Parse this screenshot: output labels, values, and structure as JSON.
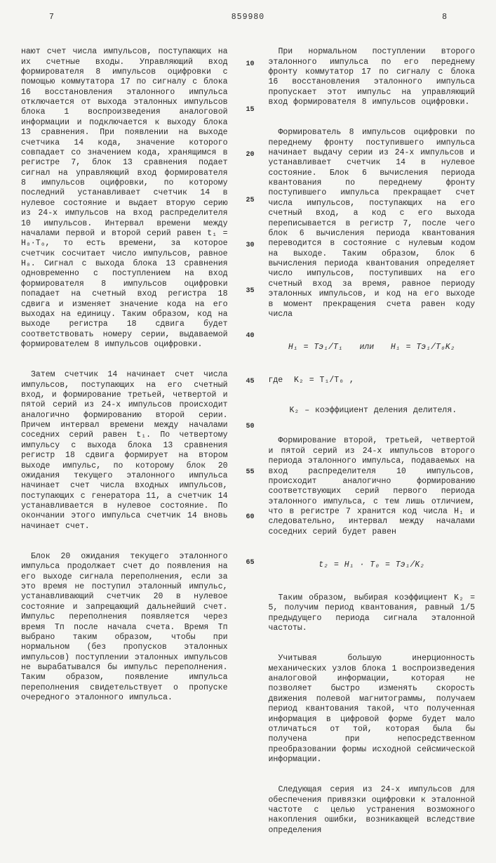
{
  "header": {
    "left_col_num": "7",
    "doc_num": "859980",
    "right_col_num": "8"
  },
  "line_numbers": [
    "10",
    "15",
    "20",
    "25",
    "30",
    "35",
    "40",
    "45",
    "50",
    "55",
    "60",
    "65"
  ],
  "line_number_offsets": [
    58,
    122,
    186,
    250,
    314,
    378,
    442,
    506,
    570,
    634,
    698,
    762
  ],
  "left_col": {
    "p1": "нают счет числа импульсов, поступающих на их счетные входы. Управляющий вход формирователя 8 импульсов оцифровки с помощью коммутатора 17 по сигналу с блока 16 восстановления эталонного импульса отключается от выхода эталонных импульсов блока 1 воспроизведения аналоговой информации и подключается к выходу блока 13 сравнения. При появлении на выходе счетчика 14 кода, значение которого совпадает со значением кода, хранящимся в регистре 7, блок 13 сравнения подает сигнал на управляющий вход формирователя 8 импульсов оцифровки, по которому последний устанавливает счетчик 14 в нулевое состояние и выдает вторую серию из 24-х импульсов на вход распределителя 10 импульсов. Интервал времени между началами первой и второй серий равен t₁ = H₀·T₀, то есть времени, за которое счетчик сосчитает число импульсов, равное H₀. Сигнал с выхода блока 13 сравнения одновременно с поступлением на вход формирователя 8 импульсов оцифровки попадает на счетный вход регистра 18 сдвига и изменяет значение кода на его выходах на единицу. Таким образом, код на выходе регистра 18 сдвига будет соответствовать номеру серии, выдаваемой формирователем 8 импульсов оцифровки.",
    "p2": "Затем счетчик 14 начинает счет числа импульсов, поступающих на его счетный вход, и формирование третьей, четвертой и пятой серий из 24-х импульсов происходит аналогично формированию второй серии. Причем интервал времени между началами соседних серий равен t₁. По четвертому импульсу с выхода блока 13 сравнения регистр 18 сдвига формирует на втором выходе импульс, по которому блок 20 ожидания текущего эталонного импульса начинает счет числа входных импульсов, поступающих с генератора 11, а счетчик 14 устанавливается в нулевое состояние. По окончании этого импульса счетчик 14 вновь начинает счет.",
    "p3": "Блок 20 ожидания текущего эталонного импульса продолжает счет до появления на его выходе сигнала переполнения, если за это время не поступил эталонный импульс, устанавливающий счетчик 20 в нулевое состояние и запрещающий дальнейший счет. Импульс переполнения появляется через время Tп после начала счета. Время Tп выбрано таким образом, чтобы при нормальном (без пропусков эталонных импульсов) поступлении эталонных импульсов не вырабатывался бы импульс переполнения. Таким образом, появление импульса переполнения свидетельствует о пропуске очередного эталонного импульса."
  },
  "right_col": {
    "p1": "При нормальном поступлении второго эталонного импульса по его переднему фронту коммутатор 17 по сигналу с блока 16 восстановления эталонного импульса пропускает этот импульс на управляющий вход формирователя 8 импульсов оцифровки.",
    "p2": "Формирователь 8 импульсов оцифровки по переднему фронту поступившего импульса начинает выдачу серии из 24-х импульсов и устанавливает счетчик 14 в нулевое состояние. Блок 6 вычисления периода квантования по переднему фронту поступившего импульса прекращает счет числа импульсов, поступающих на его счетный вход, а код с его выхода переписывается в регистр 7, после чего блок 6 вычисления периода квантования переводится в состояние с нулевым кодом на выходе. Таким образом, блок 6 вычисления периода квантования определяет число импульсов, поступивших на его счетный вход за время, равное периоду эталонных импульсов, и код на его выходе в момент прекращения счета равен коду числа",
    "f1": "H₁ = Tэ₁/T₁   или   H₁ = Tэ₁/T₀K₂",
    "f2": "где  K₂ = T₁/T₀ ,",
    "f3": "K₂ – коэффициент деления делителя.",
    "p3": "Формирование второй, третьей, четвертой и пятой серий из 24-х импульсов второго периода эталонного импульса, подаваемых на вход распределителя 10 импульсов, происходит аналогично формированию соответствующих серий первого периода эталонного импульса, с тем лишь отличием, что в регистре 7 хранится код числа H₁ и следовательно, интервал между началами соседних серий будет равен",
    "f4": "t₂ = H₁ · T₀ = Tэ₁/K₂",
    "p4": "Таким образом, выбирая коэффициент K₂ = 5, получим период квантования, равный 1/5 предыдущего периода сигнала эталонной частоты.",
    "p5": "Учитывая большую инерционность механических узлов блока 1 воспроизведения аналоговой информации, которая не позволяет быстро изменять скорость движения полевой магнитограммы, получаем период квантования такой, что полученная информация в цифровой форме будет мало отличаться от той, которая была бы получена при непосредственном преобразовании формы исходной сейсмической информации.",
    "p6": "Следующая серия из 24-х импульсов для обеспечения привязки оцифровки к эталонной частоте с целью устранения возможного накопления ошибки, возникающей вследствие определения"
  }
}
